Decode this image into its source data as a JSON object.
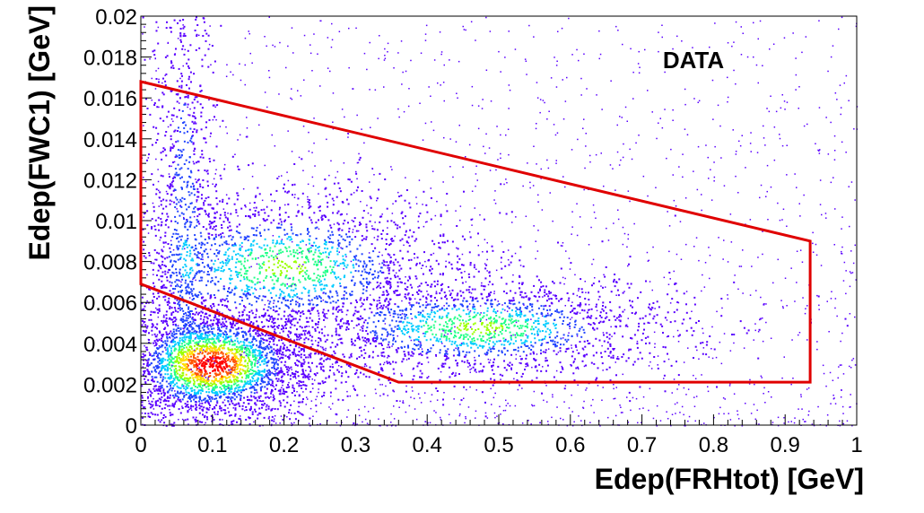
{
  "chart_data": {
    "type": "heatmap",
    "title": "",
    "annotation": "DATA",
    "xlabel": "Edep(FRHtot) [GeV]",
    "ylabel": "Edep(FWC1) [GeV]",
    "xlim": [
      0,
      1
    ],
    "ylim": [
      0,
      0.02
    ],
    "x_ticks": [
      "0",
      "0.1",
      "0.2",
      "0.3",
      "0.4",
      "0.5",
      "0.6",
      "0.7",
      "0.8",
      "0.9",
      "1"
    ],
    "y_ticks": [
      "0",
      "0.002",
      "0.004",
      "0.006",
      "0.008",
      "0.01",
      "0.012",
      "0.014",
      "0.016",
      "0.018",
      "0.02"
    ],
    "colormap": [
      "#5a00ff",
      "#2244ff",
      "#00ccff",
      "#22ff88",
      "#99ff00",
      "#ffdd00",
      "#ff5500",
      "#ff0000"
    ],
    "density_clusters": [
      {
        "name": "",
        "x_mean": 0.1,
        "y_mean": 0.003,
        "x_sigma": 0.045,
        "y_sigma": 0.0009,
        "weight": 1.0
      },
      {
        "name": "",
        "x_mean": 0.2,
        "y_mean": 0.0078,
        "x_sigma": 0.08,
        "y_sigma": 0.0012,
        "weight": 0.55
      },
      {
        "name": "",
        "x_mean": 0.47,
        "y_mean": 0.0048,
        "x_sigma": 0.09,
        "y_sigma": 0.0008,
        "weight": 0.55
      },
      {
        "name": "",
        "x_mean": 0.06,
        "y_mean": 0.011,
        "x_sigma": 0.015,
        "y_sigma": 0.005,
        "weight": 0.2
      }
    ],
    "selection_cut": {
      "color": "#e00000",
      "vertices": [
        [
          0.0,
          0.0168
        ],
        [
          0.935,
          0.009
        ],
        [
          0.935,
          0.0021
        ],
        [
          0.36,
          0.0021
        ],
        [
          0.0,
          0.0069
        ]
      ]
    }
  }
}
